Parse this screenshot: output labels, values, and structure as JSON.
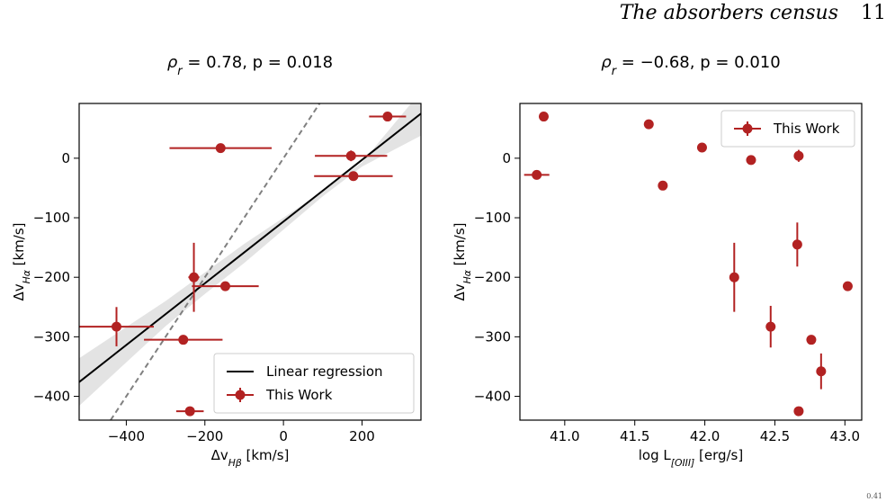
{
  "page": {
    "running_title": "The absorbers census",
    "page_number": "11",
    "corner_mark": "0.41"
  },
  "colors": {
    "points": "#b22222",
    "regression": "#000000",
    "identity": "#808080",
    "band": "#d9d9d9"
  },
  "chart_data": [
    {
      "type": "scatter",
      "title": "ρ_r = 0.78, p = 0.018",
      "title_text": {
        "rho": "ρ",
        "sub": "r",
        "rest": " = 0.78, p = 0.018"
      },
      "xlabel": "Δv_Hβ [km/s]",
      "xlabel_text": {
        "base": "Δv",
        "sub": "Hβ",
        "unit": " [km/s]"
      },
      "ylabel": "Δv_Hα [km/s]",
      "ylabel_text": {
        "base": "Δv",
        "sub": "Hα",
        "unit": " [km/s]"
      },
      "xlim": [
        -520,
        350
      ],
      "ylim": [
        -440,
        92
      ],
      "xticks": [
        -400,
        -200,
        0,
        200
      ],
      "xticklabels": [
        "−400",
        "−200",
        "0",
        "200"
      ],
      "yticks": [
        -400,
        -300,
        -200,
        -100,
        0
      ],
      "yticklabels": [
        "−400",
        "−300",
        "−200",
        "−100",
        "0"
      ],
      "grid": false,
      "legend": {
        "position": "lower right",
        "entries": [
          "Linear regression",
          "This Work"
        ]
      },
      "series": [
        {
          "name": "This Work",
          "marker": "circle",
          "points": [
            {
              "x": 265,
              "y": 70,
              "xerr": 47,
              "yerr": 0
            },
            {
              "x": -160,
              "y": 17,
              "xerr": 130,
              "yerr": 0
            },
            {
              "x": 172,
              "y": 4,
              "xerr": 92,
              "yerr": 9
            },
            {
              "x": 178,
              "y": -30,
              "xerr": 100,
              "yerr": 0
            },
            {
              "x": -228,
              "y": -200,
              "xerr": 14,
              "yerr": 58
            },
            {
              "x": -148,
              "y": -215,
              "xerr": 85,
              "yerr": 0
            },
            {
              "x": -425,
              "y": -283,
              "xerr": 95,
              "yerr": 33
            },
            {
              "x": -255,
              "y": -305,
              "xerr": 100,
              "yerr": 0
            },
            {
              "x": -238,
              "y": -425,
              "xerr": 35,
              "yerr": 0
            }
          ]
        },
        {
          "name": "Linear regression",
          "type": "line",
          "x": [
            -520,
            350
          ],
          "y": [
            -376,
            75
          ]
        }
      ],
      "identity_line": {
        "x": [
          -440,
          92
        ],
        "y": [
          -440,
          92
        ],
        "style": "dashed"
      },
      "confidence_band": {
        "x": [
          -520,
          -300,
          -200,
          -100,
          0,
          100,
          200,
          350
        ],
        "upper": [
          -336,
          -240,
          -192,
          -144,
          -100,
          -55,
          -7,
          112
        ],
        "lower": [
          -416,
          -282,
          -228,
          -176,
          -120,
          -64,
          -14,
          38
        ]
      }
    },
    {
      "type": "scatter",
      "title": "ρ_r = −0.68, p = 0.010",
      "title_text": {
        "rho": "ρ",
        "sub": "r",
        "rest": " = −0.68, p = 0.010"
      },
      "xlabel": "log L_[OIII] [erg/s]",
      "xlabel_text": {
        "base": "log L",
        "sub": "[OIII]",
        "unit": " [erg/s]"
      },
      "ylabel": "Δv_Hα [km/s]",
      "ylabel_text": {
        "base": "Δv",
        "sub": "Hα",
        "unit": " [km/s]"
      },
      "xlim": [
        40.68,
        43.12
      ],
      "ylim": [
        -440,
        92
      ],
      "xticks": [
        41.0,
        41.5,
        42.0,
        42.5,
        43.0
      ],
      "xticklabels": [
        "41.0",
        "41.5",
        "42.0",
        "42.5",
        "43.0"
      ],
      "yticks": [
        -400,
        -300,
        -200,
        -100,
        0
      ],
      "yticklabels": [
        "−400",
        "−300",
        "−200",
        "−100",
        "0"
      ],
      "grid": false,
      "legend": {
        "position": "upper right",
        "entries": [
          "This Work"
        ]
      },
      "series": [
        {
          "name": "This Work",
          "marker": "circle",
          "points": [
            {
              "x": 40.85,
              "y": 70,
              "xerr": 0,
              "yerr": 0
            },
            {
              "x": 40.8,
              "y": -28,
              "xerr": 0.09,
              "yerr": 0
            },
            {
              "x": 41.6,
              "y": 57,
              "xerr": 0,
              "yerr": 0
            },
            {
              "x": 41.7,
              "y": -46,
              "xerr": 0,
              "yerr": 0
            },
            {
              "x": 41.98,
              "y": 18,
              "xerr": 0,
              "yerr": 0
            },
            {
              "x": 42.33,
              "y": -3,
              "xerr": 0,
              "yerr": 0
            },
            {
              "x": 42.67,
              "y": 4,
              "xerr": 0,
              "yerr": 10
            },
            {
              "x": 42.21,
              "y": -200,
              "xerr": 0,
              "yerr": 58
            },
            {
              "x": 42.66,
              "y": -145,
              "xerr": 0,
              "yerr": 37
            },
            {
              "x": 42.47,
              "y": -283,
              "xerr": 0,
              "yerr": 35
            },
            {
              "x": 42.76,
              "y": -305,
              "xerr": 0,
              "yerr": 0
            },
            {
              "x": 42.83,
              "y": -358,
              "xerr": 0,
              "yerr": 30
            },
            {
              "x": 43.02,
              "y": -215,
              "xerr": 0,
              "yerr": 0
            },
            {
              "x": 42.67,
              "y": -425,
              "xerr": 0,
              "yerr": 0
            }
          ]
        }
      ]
    }
  ]
}
